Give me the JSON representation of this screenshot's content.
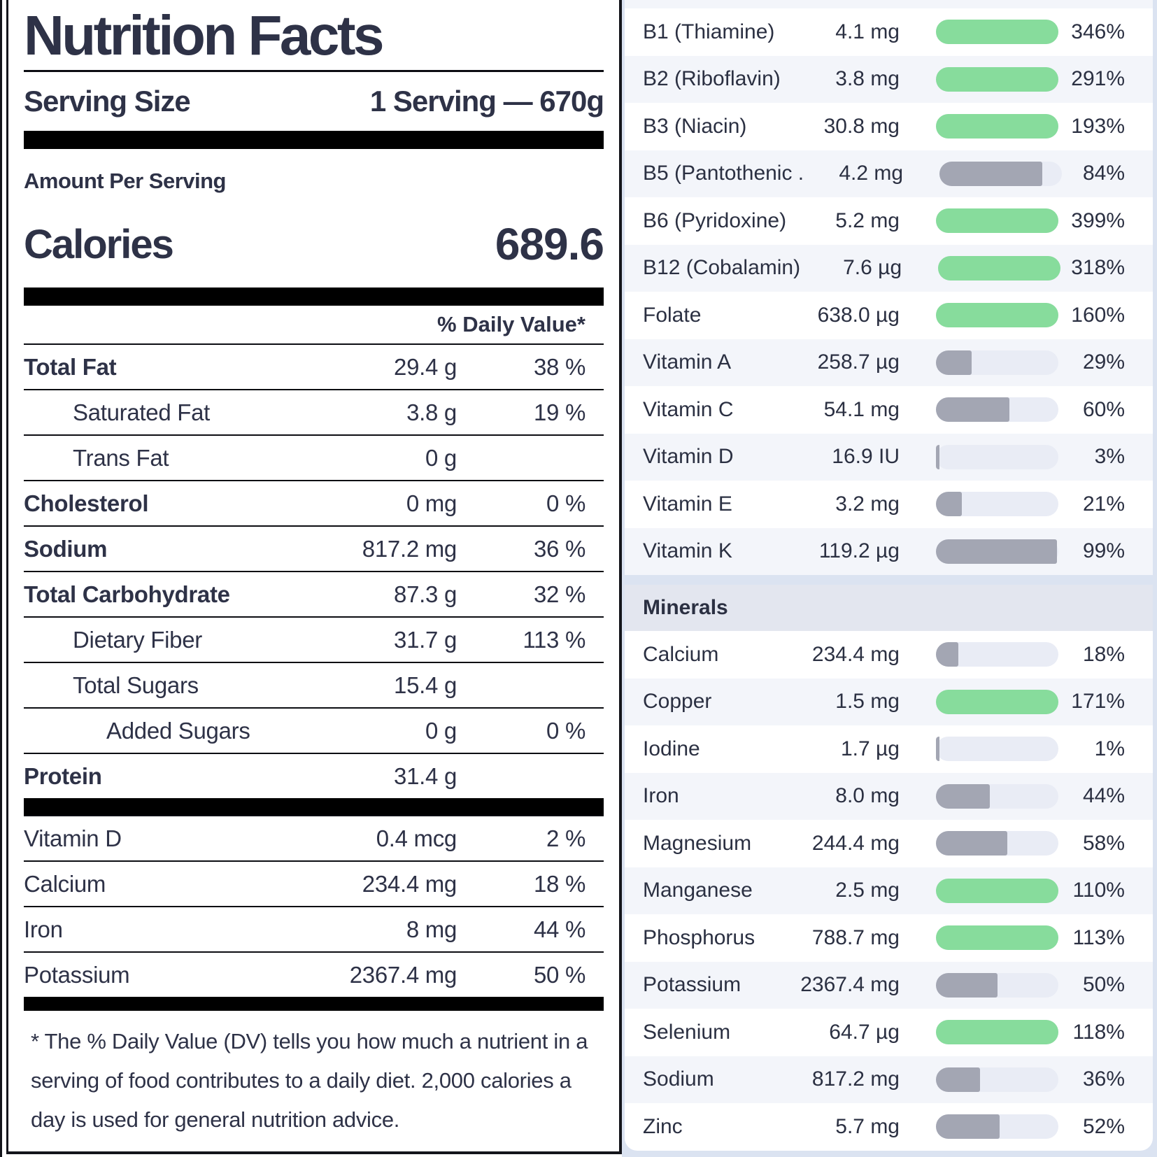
{
  "label": {
    "title": "Nutrition Facts",
    "serving": {
      "label": "Serving Size",
      "value": "1 Serving — 670g"
    },
    "amount_per_serving": "Amount Per Serving",
    "calories": {
      "label": "Calories",
      "value": "689.6"
    },
    "daily_value_header": "% Daily Value*",
    "main_rows": [
      {
        "name": "Total Fat",
        "amount": "29.4 g",
        "dv": "38 %",
        "style": "bold"
      },
      {
        "name": "Saturated Fat",
        "amount": "3.8 g",
        "dv": "19 %",
        "style": "sub"
      },
      {
        "name": "Trans Fat",
        "amount": "0 g",
        "dv": "",
        "style": "sub"
      },
      {
        "name": "Cholesterol",
        "amount": "0 mg",
        "dv": "0 %",
        "style": "bold"
      },
      {
        "name": "Sodium",
        "amount": "817.2 mg",
        "dv": "36 %",
        "style": "bold"
      },
      {
        "name": "Total Carbohydrate",
        "amount": "87.3 g",
        "dv": "32 %",
        "style": "bold"
      },
      {
        "name": "Dietary Fiber",
        "amount": "31.7 g",
        "dv": "113 %",
        "style": "sub"
      },
      {
        "name": "Total Sugars",
        "amount": "15.4 g",
        "dv": "",
        "style": "sub"
      },
      {
        "name": "Added Sugars",
        "amount": "0 g",
        "dv": "0 %",
        "style": "sub2"
      },
      {
        "name": "Protein",
        "amount": "31.4 g",
        "dv": "",
        "style": "bold"
      }
    ],
    "micro_rows": [
      {
        "name": "Vitamin D",
        "amount": "0.4 mcg",
        "dv": "2 %",
        "style": "plain"
      },
      {
        "name": "Calcium",
        "amount": "234.4 mg",
        "dv": "18 %",
        "style": "plain"
      },
      {
        "name": "Iron",
        "amount": "8 mg",
        "dv": "44 %",
        "style": "plain"
      },
      {
        "name": "Potassium",
        "amount": "2367.4 mg",
        "dv": "50 %",
        "style": "plain"
      }
    ],
    "footnote": "* The % Daily Value (DV) tells you how much a nutrient in a serving of food contributes to a daily diet. 2,000 calories a day is used for general nutrition advice."
  },
  "panel": {
    "vitamins": [
      {
        "name": "B1 (Thiamine)",
        "amount": "4.1 mg",
        "percent": 346
      },
      {
        "name": "B2 (Riboflavin)",
        "amount": "3.8 mg",
        "percent": 291
      },
      {
        "name": "B3 (Niacin)",
        "amount": "30.8 mg",
        "percent": 193
      },
      {
        "name": "B5 (Pantothenic .",
        "amount": "4.2 mg",
        "percent": 84
      },
      {
        "name": "B6 (Pyridoxine)",
        "amount": "5.2 mg",
        "percent": 399
      },
      {
        "name": "B12 (Cobalamin)",
        "amount": "7.6 µg",
        "percent": 318
      },
      {
        "name": "Folate",
        "amount": "638.0 µg",
        "percent": 160
      },
      {
        "name": "Vitamin A",
        "amount": "258.7 µg",
        "percent": 29
      },
      {
        "name": "Vitamin C",
        "amount": "54.1 mg",
        "percent": 60
      },
      {
        "name": "Vitamin D",
        "amount": "16.9 IU",
        "percent": 3
      },
      {
        "name": "Vitamin E",
        "amount": "3.2 mg",
        "percent": 21
      },
      {
        "name": "Vitamin K",
        "amount": "119.2 µg",
        "percent": 99
      }
    ],
    "minerals_header": "Minerals",
    "minerals": [
      {
        "name": "Calcium",
        "amount": "234.4 mg",
        "percent": 18
      },
      {
        "name": "Copper",
        "amount": "1.5 mg",
        "percent": 171
      },
      {
        "name": "Iodine",
        "amount": "1.7 µg",
        "percent": 1
      },
      {
        "name": "Iron",
        "amount": "8.0 mg",
        "percent": 44
      },
      {
        "name": "Magnesium",
        "amount": "244.4 mg",
        "percent": 58
      },
      {
        "name": "Manganese",
        "amount": "2.5 mg",
        "percent": 110
      },
      {
        "name": "Phosphorus",
        "amount": "788.7 mg",
        "percent": 113
      },
      {
        "name": "Potassium",
        "amount": "2367.4 mg",
        "percent": 50
      },
      {
        "name": "Selenium",
        "amount": "64.7 µg",
        "percent": 118
      },
      {
        "name": "Sodium",
        "amount": "817.2 mg",
        "percent": 36
      },
      {
        "name": "Zinc",
        "amount": "5.7 mg",
        "percent": 52
      }
    ]
  },
  "colors": {
    "text_navy": "#2e3247",
    "bar_green": "#87dc9c",
    "bar_gray": "#a3a6b3",
    "bar_track": "#e9ecf5",
    "row_stripe": "#f3f5fa",
    "minerals_header_bg": "#e3e6ef",
    "page_background_blue": "#dbe3f1",
    "label_line_black": "#0c0d12"
  }
}
